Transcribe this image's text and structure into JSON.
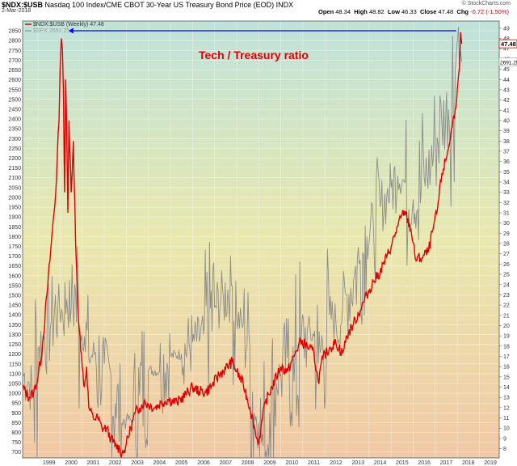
{
  "header": {
    "symbol": "$NDX:$USB",
    "description": "Nasdaq 100 Index/CME CBOT 30-Year US Treasury Bond Price (EOD)",
    "exchange": "INDX",
    "date": "2-Mar-2018",
    "brand": "© StockCharts.com",
    "stats": [
      {
        "label": "Open",
        "value": "48.34"
      },
      {
        "label": "High",
        "value": "48.82"
      },
      {
        "label": "Low",
        "value": "46.33"
      },
      {
        "label": "Close",
        "value": "47.48"
      },
      {
        "label": "Chg",
        "value": "-0.72 (-1.50%)",
        "trend": "down"
      }
    ]
  },
  "legend": [
    {
      "label": "$NDX:$USB (Weekly) 47.48",
      "color": "#e00000"
    },
    {
      "label": "$SPX 2691.25",
      "color": "#999999"
    }
  ],
  "annotation": "Tech / Treasury ratio",
  "colors": {
    "ratio": "#e00000",
    "spx": "#8c8c8c",
    "arrow": "#0000ee",
    "annotation": "#e00000",
    "bg_top": "#bfe2da",
    "bg_mid": "#e9e8ae",
    "bg_bottom": "#f1c9a5",
    "last_value_box": "#e00000"
  },
  "chart_data": {
    "type": "line",
    "x_unit": "year",
    "xlim": [
      1998.3,
      2019.9
    ],
    "x_ticks": [
      "1999",
      "2000",
      "2001",
      "2002",
      "2003",
      "2004",
      "2005",
      "2006",
      "2007",
      "2008",
      "2009",
      "2010",
      "2011",
      "2012",
      "2013",
      "2014",
      "2015",
      "2016",
      "2017",
      "2018",
      "2019"
    ],
    "left_axis": {
      "ylim": [
        670,
        2900
      ],
      "ticks": [
        700,
        750,
        800,
        850,
        900,
        950,
        1000,
        1050,
        1100,
        1150,
        1200,
        1250,
        1300,
        1350,
        1400,
        1450,
        1500,
        1550,
        1600,
        1650,
        1700,
        1750,
        1800,
        1850,
        1900,
        1950,
        2000,
        2050,
        2100,
        2150,
        2200,
        2250,
        2300,
        2350,
        2400,
        2450,
        2500,
        2550,
        2600,
        2650,
        2700,
        2750,
        2800,
        2850
      ]
    },
    "right_axis": {
      "ylim": [
        7.1,
        49.7
      ],
      "ticks": [
        8,
        9,
        10,
        11,
        12,
        13,
        14,
        15,
        16,
        17,
        18,
        19,
        20,
        21,
        22,
        23,
        24,
        25,
        26,
        27,
        28,
        29,
        30,
        31,
        32,
        33,
        34,
        35,
        36,
        37,
        38,
        39,
        40,
        41,
        42,
        43,
        44,
        45,
        46,
        47,
        48,
        49
      ],
      "last_value_label": "47.48",
      "spx_last_label": "2691.25"
    },
    "series": [
      {
        "name": "$NDX:$USB (Weekly)",
        "axis": "right",
        "x": [
          1998.3,
          1998.6,
          1998.8,
          1999.0,
          1999.2,
          1999.4,
          1999.6,
          1999.8,
          1999.95,
          2000.0,
          2000.05,
          2000.1,
          2000.15,
          2000.2,
          2000.25,
          2000.3,
          2000.35,
          2000.4,
          2000.5,
          2000.6,
          2000.7,
          2000.8,
          2000.9,
          2001.0,
          2001.1,
          2001.2,
          2001.3,
          2001.5,
          2001.7,
          2001.9,
          2002.1,
          2002.3,
          2002.5,
          2002.7,
          2002.8,
          2002.9,
          2003.0,
          2003.2,
          2003.4,
          2003.6,
          2003.8,
          2004.0,
          2004.3,
          2004.6,
          2004.9,
          2005.3,
          2005.7,
          2006.0,
          2006.3,
          2006.6,
          2006.9,
          2007.2,
          2007.5,
          2007.8,
          2008.0,
          2008.3,
          2008.6,
          2008.8,
          2008.9,
          2009.0,
          2009.1,
          2009.3,
          2009.6,
          2010.0,
          2010.3,
          2010.6,
          2010.9,
          2011.2,
          2011.5,
          2011.7,
          2011.9,
          2012.2,
          2012.5,
          2012.8,
          2013.0,
          2013.3,
          2013.6,
          2013.9,
          2014.2,
          2014.5,
          2014.8,
          2015.0,
          2015.3,
          2015.6,
          2015.9,
          2016.1,
          2016.4,
          2016.7,
          2016.9,
          2017.1,
          2017.3,
          2017.5,
          2017.7,
          2017.9,
          2018.0,
          2018.05,
          2018.1,
          2018.15,
          2018.2
        ],
        "values": [
          14.0,
          13.0,
          13.5,
          15.0,
          18.0,
          23.0,
          28.0,
          33.0,
          40.0,
          45.0,
          48.0,
          47.0,
          43.0,
          33.0,
          44.0,
          39.0,
          31.0,
          40.0,
          33.0,
          38.0,
          28.0,
          22.0,
          19.0,
          16.0,
          14.0,
          16.0,
          12.0,
          11.0,
          11.0,
          10.0,
          10.0,
          9.0,
          8.3,
          8.0,
          7.5,
          7.8,
          8.5,
          10.0,
          11.5,
          12.0,
          12.5,
          12.3,
          12.0,
          12.5,
          12.8,
          12.5,
          13.3,
          14.0,
          13.6,
          13.5,
          14.2,
          15.2,
          15.8,
          16.5,
          15.5,
          14.3,
          12.0,
          10.2,
          9.0,
          8.7,
          10.0,
          12.5,
          14.0,
          16.0,
          15.5,
          17.0,
          18.5,
          18.0,
          17.3,
          14.5,
          16.8,
          17.8,
          18.3,
          17.3,
          19.0,
          20.2,
          21.5,
          23.0,
          24.3,
          25.2,
          26.7,
          27.7,
          29.7,
          31.2,
          29.4,
          26.5,
          26.6,
          27.3,
          29.4,
          31.3,
          34.8,
          36.3,
          38.6,
          41.0,
          43.0,
          44.3,
          45.2,
          48.6,
          47.48
        ]
      },
      {
        "name": "$SPX",
        "axis": "left",
        "x": [
          1998.3,
          1998.6,
          1998.8,
          1999.0,
          1999.3,
          1999.6,
          1999.9,
          2000.1,
          2000.3,
          2000.5,
          2000.7,
          2000.9,
          2001.1,
          2001.3,
          2001.6,
          2001.8,
          2002.0,
          2002.3,
          2002.5,
          2002.8,
          2003.0,
          2003.3,
          2003.6,
          2004.0,
          2004.5,
          2005.0,
          2005.5,
          2006.0,
          2006.5,
          2007.0,
          2007.4,
          2007.8,
          2008.0,
          2008.3,
          2008.6,
          2008.8,
          2009.0,
          2009.2,
          2009.5,
          2009.8,
          2010.0,
          2010.3,
          2010.6,
          2010.9,
          2011.2,
          2011.5,
          2011.7,
          2011.9,
          2012.2,
          2012.5,
          2012.8,
          2013.0,
          2013.3,
          2013.6,
          2013.9,
          2014.2,
          2014.5,
          2014.8,
          2015.0,
          2015.3,
          2015.6,
          2015.8,
          2016.0,
          2016.2,
          2016.5,
          2016.8,
          2017.0,
          2017.3,
          2017.6,
          2017.9,
          2018.0,
          2018.05,
          2018.1,
          2018.15,
          2018.2
        ],
        "values": [
          1100,
          1050,
          1000,
          1230,
          1290,
          1370,
          1450,
          1410,
          1480,
          1430,
          1520,
          1320,
          1290,
          1180,
          1210,
          1080,
          1150,
          1100,
          950,
          850,
          870,
          860,
          990,
          1120,
          1110,
          1190,
          1200,
          1260,
          1300,
          1440,
          1490,
          1550,
          1380,
          1350,
          1250,
          900,
          850,
          730,
          900,
          1050,
          1100,
          1180,
          1060,
          1240,
          1320,
          1290,
          1150,
          1250,
          1400,
          1360,
          1440,
          1500,
          1580,
          1680,
          1800,
          1850,
          1950,
          2000,
          2050,
          2110,
          2080,
          1940,
          1990,
          1940,
          2100,
          2160,
          2280,
          2380,
          2450,
          2640,
          2800,
          2870,
          2650,
          2750,
          2691.25
        ]
      }
    ]
  }
}
